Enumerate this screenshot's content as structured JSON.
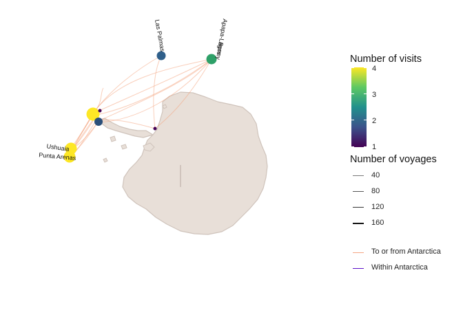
{
  "ports": [
    {
      "label": "Las Palmas",
      "visits": 2
    },
    {
      "label": "Apapa-Lagos",
      "visits": 3
    },
    {
      "label": "Bonny",
      "visits": 3
    },
    {
      "label": "Ushuaia",
      "visits": 4
    },
    {
      "label": "Punta Arenas",
      "visits": 4
    }
  ],
  "legend": {
    "visits": {
      "title": "Number of visits",
      "ticks": [
        "4",
        "3",
        "2",
        "1"
      ]
    },
    "voyages": {
      "title": "Number of voyages",
      "items": [
        "40",
        "80",
        "120",
        "160"
      ]
    },
    "route_types": [
      {
        "label": "To or from Antarctica",
        "color": "#f4a582"
      },
      {
        "label": "Within Antarctica",
        "color": "#5a0fc8"
      }
    ]
  },
  "colors": {
    "land_fill": "#e8dfd8",
    "land_outline": "#cfc3bb",
    "viridis_low": "#440154",
    "viridis_high": "#fde725"
  }
}
